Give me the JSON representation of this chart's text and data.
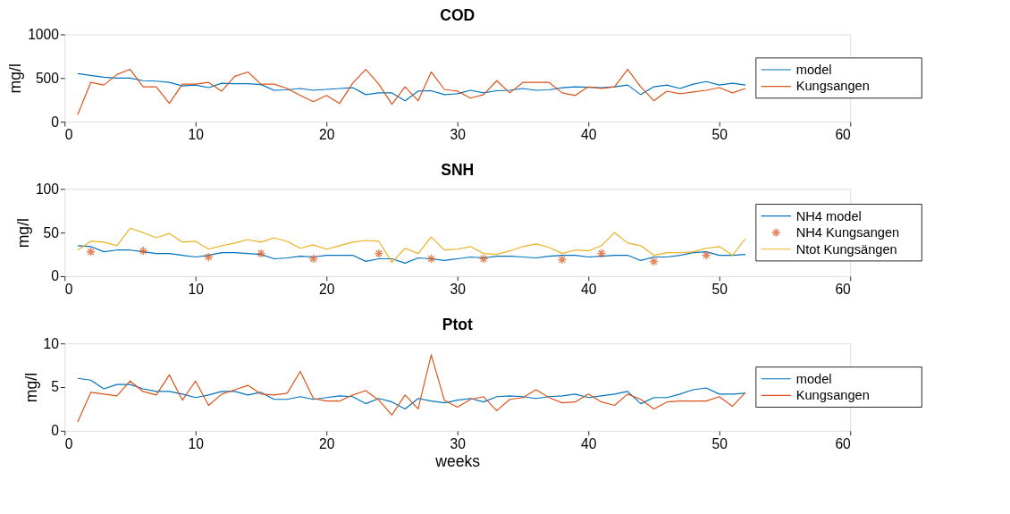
{
  "chart_data": [
    {
      "type": "line",
      "title": "COD",
      "ylabel": "mg/l",
      "x": [
        1,
        2,
        3,
        4,
        5,
        6,
        7,
        8,
        9,
        10,
        11,
        12,
        13,
        14,
        15,
        16,
        17,
        18,
        19,
        20,
        21,
        22,
        23,
        24,
        25,
        26,
        27,
        28,
        29,
        30,
        31,
        32,
        33,
        34,
        35,
        36,
        37,
        38,
        39,
        40,
        41,
        42,
        43,
        44,
        45,
        46,
        47,
        48,
        49,
        50,
        51,
        52
      ],
      "xlim": [
        0,
        60
      ],
      "xticks": [
        0,
        10,
        20,
        30,
        40,
        50,
        60
      ],
      "ylim": [
        0,
        1000
      ],
      "yticks": [
        0,
        500,
        {
          "value": 1000,
          "label": "1000"
        }
      ],
      "grid": false,
      "legend": "right",
      "series": [
        {
          "name": "model",
          "color": "#0072bd",
          "values": [
            550,
            530,
            510,
            500,
            500,
            470,
            465,
            450,
            410,
            420,
            390,
            440,
            435,
            435,
            425,
            360,
            365,
            380,
            360,
            370,
            380,
            390,
            310,
            330,
            330,
            240,
            350,
            355,
            310,
            320,
            360,
            330,
            355,
            360,
            380,
            360,
            365,
            390,
            400,
            395,
            390,
            400,
            420,
            310,
            400,
            420,
            380,
            430,
            460,
            420,
            440,
            420
          ]
        },
        {
          "name": "Kungsangen",
          "color": "#d95319",
          "values": [
            80,
            450,
            420,
            540,
            600,
            400,
            400,
            210,
            430,
            430,
            450,
            350,
            520,
            570,
            430,
            430,
            380,
            300,
            230,
            300,
            210,
            440,
            600,
            430,
            200,
            400,
            240,
            570,
            370,
            350,
            270,
            310,
            470,
            330,
            450,
            450,
            450,
            330,
            300,
            400,
            380,
            400,
            600,
            400,
            240,
            350,
            320,
            340,
            360,
            390,
            330,
            380
          ]
        }
      ]
    },
    {
      "type": "line",
      "title": "SNH",
      "ylabel": "mg/l",
      "x": [
        1,
        2,
        3,
        4,
        5,
        6,
        7,
        8,
        9,
        10,
        11,
        12,
        13,
        14,
        15,
        16,
        17,
        18,
        19,
        20,
        21,
        22,
        23,
        24,
        25,
        26,
        27,
        28,
        29,
        30,
        31,
        32,
        33,
        34,
        35,
        36,
        37,
        38,
        39,
        40,
        41,
        42,
        43,
        44,
        45,
        46,
        47,
        48,
        49,
        50,
        51,
        52
      ],
      "xlim": [
        0,
        60
      ],
      "xticks": [
        0,
        10,
        20,
        30,
        40,
        50,
        60
      ],
      "ylim": [
        0,
        100
      ],
      "yticks": [
        0,
        50,
        100
      ],
      "grid": false,
      "legend": "right",
      "series": [
        {
          "name": "NH4 model",
          "color": "#0072bd",
          "values": [
            35,
            34,
            28,
            30,
            30,
            28,
            26,
            26,
            24,
            22,
            24,
            27,
            27,
            26,
            25,
            20,
            21,
            23,
            22,
            24,
            24,
            24,
            17,
            20,
            20,
            15,
            21,
            20,
            18,
            20,
            22,
            21,
            23,
            23,
            22,
            21,
            23,
            24,
            24,
            22,
            23,
            24,
            24,
            18,
            22,
            22,
            24,
            27,
            28,
            24,
            24,
            25
          ]
        },
        {
          "name": "NH4 Kungsangen",
          "color": "#d95319",
          "type": "scatter",
          "marker": "cross",
          "x": [
            2,
            6,
            11,
            15,
            19,
            24,
            28,
            32,
            38,
            41,
            45,
            49
          ],
          "values": [
            28,
            29,
            22,
            26,
            20,
            26,
            20,
            20,
            19,
            26,
            17,
            24
          ]
        },
        {
          "name": "Ntot Kungsängen",
          "color": "#edb120",
          "values": [
            30,
            40,
            39,
            35,
            55,
            50,
            44,
            49,
            39,
            40,
            31,
            35,
            38,
            42,
            39,
            44,
            40,
            32,
            36,
            31,
            35,
            39,
            41,
            40,
            16,
            32,
            26,
            45,
            30,
            31,
            34,
            26,
            25,
            29,
            34,
            37,
            33,
            26,
            30,
            29,
            35,
            50,
            38,
            35,
            24,
            27,
            27,
            28,
            32,
            34,
            24,
            43
          ]
        }
      ]
    },
    {
      "type": "line",
      "title": "Ptot",
      "ylabel": "mg/l",
      "xlabel": "weeks",
      "x": [
        1,
        2,
        3,
        4,
        5,
        6,
        7,
        8,
        9,
        10,
        11,
        12,
        13,
        14,
        15,
        16,
        17,
        18,
        19,
        20,
        21,
        22,
        23,
        24,
        25,
        26,
        27,
        28,
        29,
        30,
        31,
        32,
        33,
        34,
        35,
        36,
        37,
        38,
        39,
        40,
        41,
        42,
        43,
        44,
        45,
        46,
        47,
        48,
        49,
        50,
        51,
        52
      ],
      "xlim": [
        0,
        60
      ],
      "xticks": [
        0,
        10,
        20,
        30,
        40,
        50,
        60
      ],
      "ylim": [
        0,
        10
      ],
      "yticks": [
        0,
        5,
        10
      ],
      "grid": false,
      "legend": "right",
      "series": [
        {
          "name": "model",
          "color": "#0072bd",
          "values": [
            6,
            5.8,
            4.8,
            5.3,
            5.3,
            4.8,
            4.5,
            4.5,
            4.2,
            3.8,
            4.1,
            4.5,
            4.5,
            4.1,
            4.4,
            3.6,
            3.6,
            3.9,
            3.6,
            3.8,
            4,
            3.9,
            3.1,
            3.7,
            3.3,
            2.5,
            3.7,
            3.4,
            3.2,
            3.5,
            3.7,
            3.3,
            3.9,
            4,
            3.9,
            3.7,
            3.9,
            4,
            4.2,
            3.8,
            4,
            4.2,
            4.5,
            3.1,
            3.8,
            3.8,
            4.2,
            4.7,
            4.9,
            4.2,
            4.2,
            4.3
          ]
        },
        {
          "name": "Kungsangen",
          "color": "#d95319",
          "values": [
            1,
            4.4,
            4.2,
            4,
            5.7,
            4.5,
            4.1,
            6.4,
            3.5,
            5.7,
            2.9,
            4.2,
            4.7,
            5.2,
            4.2,
            4.1,
            4.3,
            6.8,
            3.7,
            3.4,
            3.4,
            4.1,
            4.6,
            3.5,
            1.8,
            4.1,
            2.5,
            8.7,
            3.5,
            2.7,
            3.6,
            3.9,
            2.3,
            3.6,
            3.8,
            4.7,
            3.8,
            3.2,
            3.3,
            4.2,
            3.3,
            2.9,
            4.2,
            3.6,
            2.5,
            3.3,
            3.4,
            3.4,
            3.4,
            3.9,
            2.8,
            4.4
          ]
        }
      ]
    }
  ]
}
